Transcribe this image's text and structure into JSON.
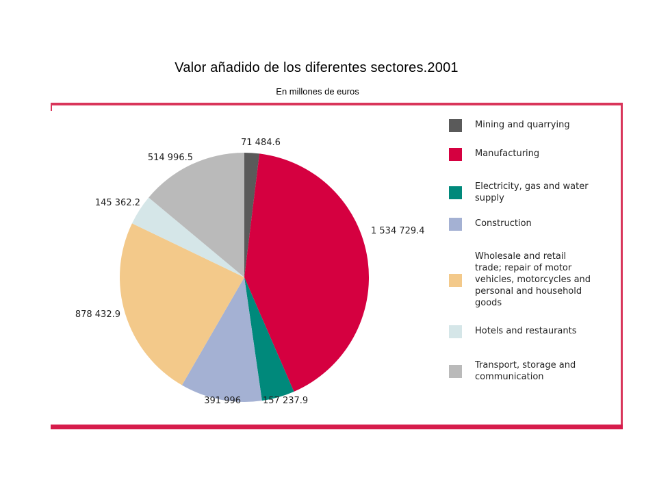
{
  "chart_data": {
    "type": "pie",
    "title": "Valor añadido de los diferentes sectores.2001",
    "subtitle": "En millones de euros",
    "start_angle_deg": 0,
    "direction": "clockwise",
    "legend_position": "right",
    "slices": [
      {
        "label": "Mining and quarrying",
        "value": 71484.6,
        "value_label": "71 484.6",
        "color": "#5a5a5a"
      },
      {
        "label": "Manufacturing",
        "value": 1534729.4,
        "value_label": "1 534 729.4",
        "color": "#d50040"
      },
      {
        "label": "Electricity, gas and water supply",
        "value": 157237.9,
        "value_label": "157 237.9",
        "color": "#00897b"
      },
      {
        "label": "Construction",
        "value": 391996,
        "value_label": "391 996",
        "color": "#a4b1d3"
      },
      {
        "label": "Wholesale and retail trade; repair of motor vehicles, motorcycles and personal and household goods",
        "value": 878432.9,
        "value_label": "878 432.9",
        "color": "#f3c98a"
      },
      {
        "label": "Hotels and restaurants",
        "value": 145362.2,
        "value_label": "145 362.2",
        "color": "#d5e6e8"
      },
      {
        "label": "Transport, storage and communication",
        "value": 514996.5,
        "value_label": "514 996.5",
        "color": "#bababa"
      }
    ]
  },
  "legend": [
    {
      "lines": [
        "Mining and quarrying"
      ],
      "color": "#5a5a5a"
    },
    {
      "lines": [
        "Manufacturing"
      ],
      "color": "#d50040"
    },
    {
      "lines": [
        "Electricity, gas and water",
        "supply"
      ],
      "color": "#00897b"
    },
    {
      "lines": [
        "Construction"
      ],
      "color": "#a4b1d3"
    },
    {
      "lines": [
        "Wholesale and retail",
        "trade; repair of motor",
        "vehicles, motorcycles and",
        "personal and household",
        "goods"
      ],
      "color": "#f3c98a"
    },
    {
      "lines": [
        "Hotels and restaurants"
      ],
      "color": "#d5e6e8"
    },
    {
      "lines": [
        "Transport, storage and",
        "communication"
      ],
      "color": "#bababa"
    }
  ]
}
